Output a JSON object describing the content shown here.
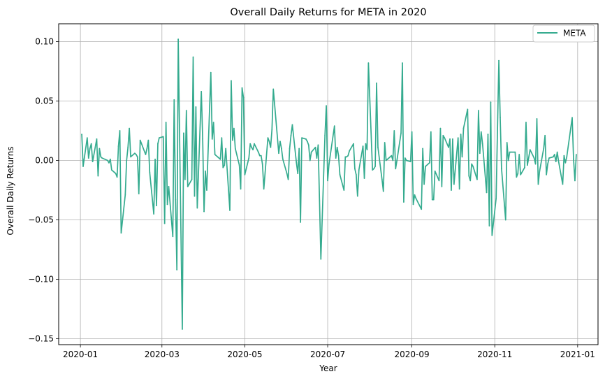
{
  "chart_data": {
    "type": "line",
    "title": "Overall Daily Returns for META in 2020",
    "xlabel": "Year",
    "ylabel": "Overall Daily Returns",
    "grid": true,
    "legend_position": "top-right",
    "xlim": [
      "2019-12-16",
      "2021-01-16"
    ],
    "ylim": [
      -0.155,
      0.115
    ],
    "x_ticks": [
      "2020-01",
      "2020-03",
      "2020-05",
      "2020-07",
      "2020-09",
      "2020-11",
      "2021-01"
    ],
    "y_ticks": [
      "−0.15",
      "−0.10",
      "−0.05",
      "0.00",
      "0.05",
      "0.10"
    ],
    "y_tick_values": [
      -0.15,
      -0.1,
      -0.05,
      0.0,
      0.05,
      0.1
    ],
    "series": [
      {
        "name": "META",
        "color": "#35ab8f",
        "points": [
          [
            "2020-01-02",
            0.022
          ],
          [
            "2020-01-03",
            -0.005
          ],
          [
            "2020-01-06",
            0.019
          ],
          [
            "2020-01-07",
            0.002
          ],
          [
            "2020-01-08",
            0.01
          ],
          [
            "2020-01-09",
            0.014
          ],
          [
            "2020-01-10",
            -0.001
          ],
          [
            "2020-01-13",
            0.018
          ],
          [
            "2020-01-14",
            -0.013
          ],
          [
            "2020-01-15",
            0.01
          ],
          [
            "2020-01-16",
            0.003
          ],
          [
            "2020-01-17",
            0.002
          ],
          [
            "2020-01-21",
            0.0
          ],
          [
            "2020-01-22",
            -0.002
          ],
          [
            "2020-01-23",
            0.001
          ],
          [
            "2020-01-24",
            -0.008
          ],
          [
            "2020-01-27",
            -0.011
          ],
          [
            "2020-01-28",
            -0.014
          ],
          [
            "2020-01-29",
            0.012
          ],
          [
            "2020-01-30",
            0.025
          ],
          [
            "2020-01-31",
            -0.061
          ],
          [
            "2020-02-03",
            -0.029
          ],
          [
            "2020-02-04",
            0.0
          ],
          [
            "2020-02-05",
            0.011
          ],
          [
            "2020-02-06",
            0.027
          ],
          [
            "2020-02-07",
            0.003
          ],
          [
            "2020-02-10",
            0.006
          ],
          [
            "2020-02-11",
            0.005
          ],
          [
            "2020-02-12",
            0.003
          ],
          [
            "2020-02-13",
            -0.028
          ],
          [
            "2020-02-14",
            0.017
          ],
          [
            "2020-02-18",
            0.005
          ],
          [
            "2020-02-19",
            0.01
          ],
          [
            "2020-02-20",
            0.017
          ],
          [
            "2020-02-21",
            -0.01
          ],
          [
            "2020-02-24",
            -0.045
          ],
          [
            "2020-02-25",
            0.001
          ],
          [
            "2020-02-26",
            -0.038
          ],
          [
            "2020-02-27",
            0.014
          ],
          [
            "2020-02-28",
            0.019
          ],
          [
            "2020-03-02",
            0.02
          ],
          [
            "2020-03-03",
            -0.053
          ],
          [
            "2020-03-04",
            0.032
          ],
          [
            "2020-03-05",
            -0.037
          ],
          [
            "2020-03-06",
            -0.022
          ],
          [
            "2020-03-09",
            -0.064
          ],
          [
            "2020-03-10",
            0.051
          ],
          [
            "2020-03-11",
            -0.033
          ],
          [
            "2020-03-12",
            -0.092
          ],
          [
            "2020-03-13",
            0.102
          ],
          [
            "2020-03-16",
            -0.142
          ],
          [
            "2020-03-17",
            0.023
          ],
          [
            "2020-03-18",
            -0.016
          ],
          [
            "2020-03-19",
            0.042
          ],
          [
            "2020-03-20",
            -0.022
          ],
          [
            "2020-03-23",
            -0.016
          ],
          [
            "2020-03-24",
            0.087
          ],
          [
            "2020-03-25",
            -0.03
          ],
          [
            "2020-03-26",
            0.045
          ],
          [
            "2020-03-27",
            -0.04
          ],
          [
            "2020-03-30",
            0.058
          ],
          [
            "2020-03-31",
            0.018
          ],
          [
            "2020-04-01",
            -0.043
          ],
          [
            "2020-04-02",
            -0.009
          ],
          [
            "2020-04-03",
            -0.025
          ],
          [
            "2020-04-06",
            0.074
          ],
          [
            "2020-04-07",
            0.018
          ],
          [
            "2020-04-08",
            0.032
          ],
          [
            "2020-04-09",
            0.005
          ],
          [
            "2020-04-13",
            0.001
          ],
          [
            "2020-04-14",
            0.019
          ],
          [
            "2020-04-15",
            -0.006
          ],
          [
            "2020-04-16",
            -0.004
          ],
          [
            "2020-04-17",
            0.01
          ],
          [
            "2020-04-20",
            -0.042
          ],
          [
            "2020-04-21",
            0.067
          ],
          [
            "2020-04-22",
            0.017
          ],
          [
            "2020-04-23",
            0.027
          ],
          [
            "2020-04-24",
            0.01
          ],
          [
            "2020-04-27",
            -0.004
          ],
          [
            "2020-04-28",
            -0.024
          ],
          [
            "2020-04-29",
            0.061
          ],
          [
            "2020-04-30",
            0.053
          ],
          [
            "2020-05-01",
            -0.012
          ],
          [
            "2020-05-04",
            0.002
          ],
          [
            "2020-05-05",
            0.014
          ],
          [
            "2020-05-06",
            0.011
          ],
          [
            "2020-05-07",
            0.009
          ],
          [
            "2020-05-08",
            0.014
          ],
          [
            "2020-05-11",
            0.007
          ],
          [
            "2020-05-12",
            0.004
          ],
          [
            "2020-05-13",
            0.004
          ],
          [
            "2020-05-14",
            -0.003
          ],
          [
            "2020-05-15",
            -0.024
          ],
          [
            "2020-05-18",
            0.019
          ],
          [
            "2020-05-19",
            0.016
          ],
          [
            "2020-05-20",
            0.011
          ],
          [
            "2020-05-21",
            0.026
          ],
          [
            "2020-05-22",
            0.06
          ],
          [
            "2020-05-26",
            0.006
          ],
          [
            "2020-05-27",
            0.016
          ],
          [
            "2020-05-28",
            0.01
          ],
          [
            "2020-05-29",
            0.001
          ],
          [
            "2020-06-01",
            -0.011
          ],
          [
            "2020-06-02",
            -0.016
          ],
          [
            "2020-06-03",
            0.01
          ],
          [
            "2020-06-04",
            0.021
          ],
          [
            "2020-06-05",
            0.03
          ],
          [
            "2020-06-08",
            -0.002
          ],
          [
            "2020-06-09",
            -0.011
          ],
          [
            "2020-06-10",
            0.01
          ],
          [
            "2020-06-11",
            -0.052
          ],
          [
            "2020-06-12",
            0.019
          ],
          [
            "2020-06-15",
            0.018
          ],
          [
            "2020-06-16",
            0.016
          ],
          [
            "2020-06-17",
            0.013
          ],
          [
            "2020-06-18",
            0.0
          ],
          [
            "2020-06-19",
            0.007
          ],
          [
            "2020-06-22",
            0.011
          ],
          [
            "2020-06-23",
            0.002
          ],
          [
            "2020-06-24",
            0.013
          ],
          [
            "2020-06-25",
            -0.034
          ],
          [
            "2020-06-26",
            -0.083
          ],
          [
            "2020-06-29",
            0.021
          ],
          [
            "2020-06-30",
            0.046
          ],
          [
            "2020-07-01",
            -0.017
          ],
          [
            "2020-07-02",
            -0.003
          ],
          [
            "2020-07-06",
            0.029
          ],
          [
            "2020-07-07",
            0.002
          ],
          [
            "2020-07-08",
            0.011
          ],
          [
            "2020-07-09",
            0.004
          ],
          [
            "2020-07-10",
            -0.012
          ],
          [
            "2020-07-13",
            -0.025
          ],
          [
            "2020-07-14",
            0.003
          ],
          [
            "2020-07-15",
            0.003
          ],
          [
            "2020-07-16",
            0.004
          ],
          [
            "2020-07-17",
            0.008
          ],
          [
            "2020-07-20",
            0.014
          ],
          [
            "2020-07-21",
            -0.007
          ],
          [
            "2020-07-22",
            -0.012
          ],
          [
            "2020-07-23",
            -0.03
          ],
          [
            "2020-07-24",
            -0.008
          ],
          [
            "2020-07-27",
            0.012
          ],
          [
            "2020-07-28",
            -0.015
          ],
          [
            "2020-07-29",
            0.014
          ],
          [
            "2020-07-30",
            0.009
          ],
          [
            "2020-07-31",
            0.082
          ],
          [
            "2020-08-03",
            -0.008
          ],
          [
            "2020-08-04",
            -0.007
          ],
          [
            "2020-08-05",
            -0.005
          ],
          [
            "2020-08-06",
            0.065
          ],
          [
            "2020-08-07",
            0.011
          ],
          [
            "2020-08-10",
            -0.016
          ],
          [
            "2020-08-11",
            -0.026
          ],
          [
            "2020-08-12",
            0.015
          ],
          [
            "2020-08-13",
            0.0
          ],
          [
            "2020-08-14",
            0.001
          ],
          [
            "2020-08-17",
            0.004
          ],
          [
            "2020-08-18",
            0.0
          ],
          [
            "2020-08-19",
            0.025
          ],
          [
            "2020-08-20",
            -0.007
          ],
          [
            "2020-08-21",
            0.0
          ],
          [
            "2020-08-24",
            0.023
          ],
          [
            "2020-08-25",
            0.082
          ],
          [
            "2020-08-26",
            -0.035
          ],
          [
            "2020-08-27",
            0.002
          ],
          [
            "2020-08-28",
            0.0
          ],
          [
            "2020-08-31",
            -0.001
          ],
          [
            "2020-09-01",
            0.024
          ],
          [
            "2020-09-02",
            -0.037
          ],
          [
            "2020-09-03",
            -0.029
          ],
          [
            "2020-09-04",
            -0.032
          ],
          [
            "2020-09-08",
            -0.041
          ],
          [
            "2020-09-09",
            0.01
          ],
          [
            "2020-09-10",
            -0.02
          ],
          [
            "2020-09-11",
            -0.005
          ],
          [
            "2020-09-14",
            -0.002
          ],
          [
            "2020-09-15",
            0.024
          ],
          [
            "2020-09-16",
            -0.033
          ],
          [
            "2020-09-17",
            -0.033
          ],
          [
            "2020-09-18",
            -0.009
          ],
          [
            "2020-09-21",
            -0.017
          ],
          [
            "2020-09-22",
            0.027
          ],
          [
            "2020-09-23",
            -0.022
          ],
          [
            "2020-09-24",
            0.021
          ],
          [
            "2020-09-25",
            0.019
          ],
          [
            "2020-09-28",
            0.011
          ],
          [
            "2020-09-29",
            0.018
          ],
          [
            "2020-09-30",
            -0.025
          ],
          [
            "2020-10-01",
            0.018
          ],
          [
            "2020-10-02",
            -0.02
          ],
          [
            "2020-10-05",
            0.019
          ],
          [
            "2020-10-06",
            -0.024
          ],
          [
            "2020-10-07",
            0.022
          ],
          [
            "2020-10-08",
            0.003
          ],
          [
            "2020-10-09",
            0.027
          ],
          [
            "2020-10-12",
            0.043
          ],
          [
            "2020-10-13",
            -0.013
          ],
          [
            "2020-10-14",
            -0.017
          ],
          [
            "2020-10-15",
            -0.003
          ],
          [
            "2020-10-16",
            -0.005
          ],
          [
            "2020-10-19",
            -0.016
          ],
          [
            "2020-10-20",
            0.042
          ],
          [
            "2020-10-21",
            0.006
          ],
          [
            "2020-10-22",
            0.024
          ],
          [
            "2020-10-23",
            0.014
          ],
          [
            "2020-10-26",
            -0.027
          ],
          [
            "2020-10-27",
            0.022
          ],
          [
            "2020-10-28",
            -0.055
          ],
          [
            "2020-10-29",
            0.049
          ],
          [
            "2020-10-30",
            -0.063
          ],
          [
            "2020-11-02",
            -0.032
          ],
          [
            "2020-11-04",
            0.084
          ],
          [
            "2020-11-05",
            0.036
          ],
          [
            "2020-11-06",
            -0.007
          ],
          [
            "2020-11-09",
            -0.05
          ],
          [
            "2020-11-10",
            0.015
          ],
          [
            "2020-11-11",
            0.0
          ],
          [
            "2020-11-12",
            0.007
          ],
          [
            "2020-11-13",
            0.007
          ],
          [
            "2020-11-16",
            0.007
          ],
          [
            "2020-11-17",
            -0.014
          ],
          [
            "2020-11-18",
            -0.011
          ],
          [
            "2020-11-19",
            0.005
          ],
          [
            "2020-11-20",
            -0.012
          ],
          [
            "2020-11-23",
            -0.006
          ],
          [
            "2020-11-24",
            0.032
          ],
          [
            "2020-11-25",
            -0.004
          ],
          [
            "2020-11-27",
            0.009
          ],
          [
            "2020-11-30",
            0.002
          ],
          [
            "2020-12-01",
            -0.003
          ],
          [
            "2020-12-02",
            0.035
          ],
          [
            "2020-12-03",
            -0.02
          ],
          [
            "2020-12-04",
            -0.009
          ],
          [
            "2020-12-07",
            0.01
          ],
          [
            "2020-12-08",
            0.021
          ],
          [
            "2020-12-09",
            -0.012
          ],
          [
            "2020-12-10",
            -0.003
          ],
          [
            "2020-12-11",
            0.002
          ],
          [
            "2020-12-14",
            0.003
          ],
          [
            "2020-12-15",
            0.005
          ],
          [
            "2020-12-16",
            -0.001
          ],
          [
            "2020-12-17",
            0.007
          ],
          [
            "2020-12-18",
            -0.001
          ],
          [
            "2020-12-21",
            -0.02
          ],
          [
            "2020-12-22",
            0.004
          ],
          [
            "2020-12-23",
            -0.002
          ],
          [
            "2020-12-24",
            0.003
          ],
          [
            "2020-12-28",
            0.036
          ],
          [
            "2020-12-29",
            0.001
          ],
          [
            "2020-12-30",
            -0.017
          ],
          [
            "2020-12-31",
            0.005
          ]
        ]
      }
    ]
  }
}
